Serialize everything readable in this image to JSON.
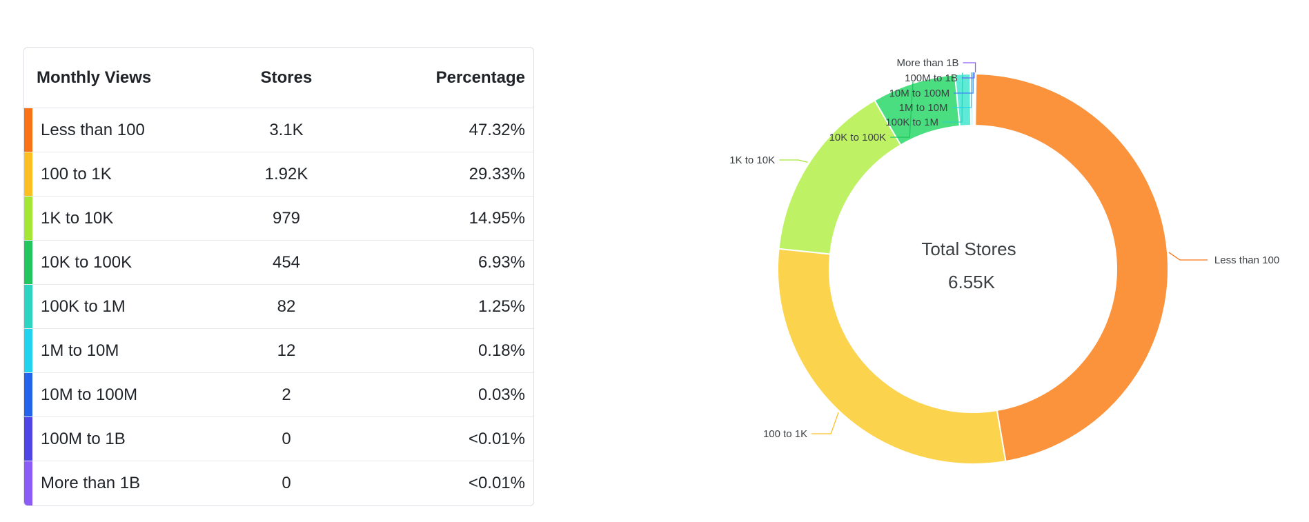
{
  "table": {
    "headers": [
      "Monthly Views",
      "Stores",
      "Percentage"
    ],
    "rows": [
      {
        "label": "Less than 100",
        "stores": "3.1K",
        "percentage": "47.32%",
        "color": "#f97316"
      },
      {
        "label": "100 to 1K",
        "stores": "1.92K",
        "percentage": "29.33%",
        "color": "#fbbf24"
      },
      {
        "label": "1K to 10K",
        "stores": "979",
        "percentage": "14.95%",
        "color": "#a3e635"
      },
      {
        "label": "10K to 100K",
        "stores": "454",
        "percentage": "6.93%",
        "color": "#22c55e"
      },
      {
        "label": "100K to 1M",
        "stores": "82",
        "percentage": "1.25%",
        "color": "#2dd4bf"
      },
      {
        "label": "1M to 10M",
        "stores": "12",
        "percentage": "0.18%",
        "color": "#22d3ee"
      },
      {
        "label": "10M to 100M",
        "stores": "2",
        "percentage": "0.03%",
        "color": "#2563eb"
      },
      {
        "label": "100M to 1B",
        "stores": "0",
        "percentage": "<0.01%",
        "color": "#4f46e5"
      },
      {
        "label": "More than 1B",
        "stores": "0",
        "percentage": "<0.01%",
        "color": "#8b5cf6"
      }
    ]
  },
  "chart_data": {
    "type": "pie",
    "donut": true,
    "center_title": "Total Stores",
    "center_value": "6.55K",
    "categories": [
      "Less than 100",
      "100 to 1K",
      "1K to 10K",
      "10K to 100K",
      "100K to 1M",
      "1M to 10M",
      "10M to 100M",
      "100M to 1B",
      "More than 1B"
    ],
    "values": [
      47.32,
      29.33,
      14.95,
      6.93,
      1.25,
      0.18,
      0.03,
      0.005,
      0.005
    ],
    "colors": [
      "#fb923c",
      "#fcd34d",
      "#bef264",
      "#4ade80",
      "#5eead4",
      "#67e8f9",
      "#60a5fa",
      "#818cf8",
      "#a78bfa"
    ],
    "label_colors": [
      "#f97316",
      "#fbbf24",
      "#a3e635",
      "#22c55e",
      "#2dd4bf",
      "#22d3ee",
      "#3b82f6",
      "#6366f1",
      "#8b5cf6"
    ],
    "legend": "none"
  }
}
